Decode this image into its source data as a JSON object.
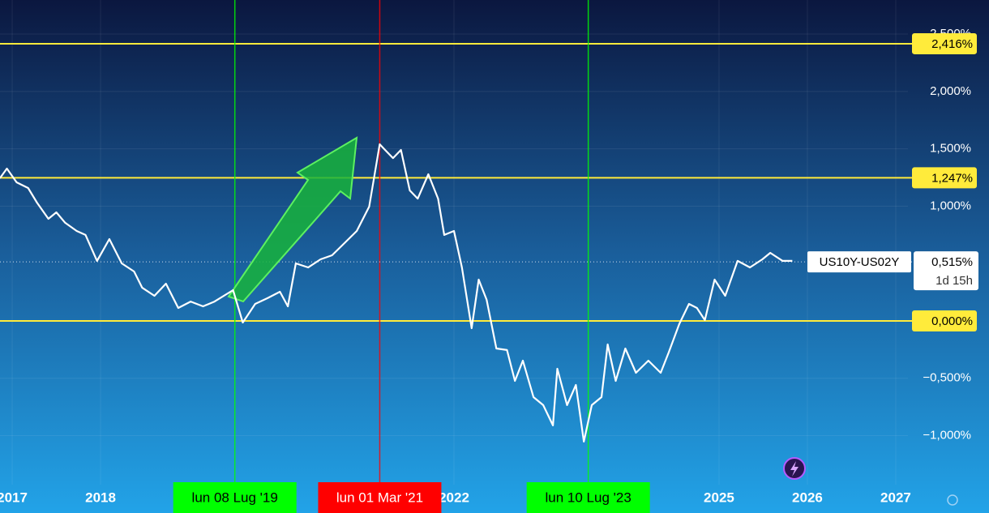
{
  "chart_data": {
    "type": "line",
    "x": [
      2016.86,
      2016.94,
      2017.05,
      2017.18,
      2017.28,
      2017.41,
      2017.5,
      2017.6,
      2017.73,
      2017.83,
      2017.96,
      2018.1,
      2018.24,
      2018.38,
      2018.47,
      2018.61,
      2018.74,
      2018.88,
      2019.02,
      2019.16,
      2019.29,
      2019.5,
      2019.61,
      2019.75,
      2019.89,
      2020.03,
      2020.12,
      2020.21,
      2020.35,
      2020.49,
      2020.62,
      2020.76,
      2020.9,
      2021.04,
      2021.16,
      2021.22,
      2021.31,
      2021.4,
      2021.5,
      2021.59,
      2021.71,
      2021.82,
      2021.89,
      2022.0,
      2022.09,
      2022.2,
      2022.28,
      2022.37,
      2022.48,
      2022.6,
      2022.69,
      2022.78,
      2022.9,
      2023.01,
      2023.12,
      2023.17,
      2023.28,
      2023.38,
      2023.47,
      2023.56,
      2023.67,
      2023.74,
      2023.83,
      2023.94,
      2024.06,
      2024.2,
      2024.34,
      2024.43,
      2024.55,
      2024.66,
      2024.75,
      2024.84,
      2024.95,
      2025.07,
      2025.21,
      2025.35,
      2025.49,
      2025.58,
      2025.72,
      2025.83
    ],
    "series": [
      {
        "name": "US10Y-US02Y",
        "color": "#ffffff",
        "values": [
          1.243,
          1.328,
          1.208,
          1.158,
          1.031,
          0.89,
          0.946,
          0.855,
          0.784,
          0.749,
          0.523,
          0.713,
          0.501,
          0.431,
          0.29,
          0.219,
          0.325,
          0.113,
          0.169,
          0.127,
          0.169,
          0.268,
          -0.014,
          0.148,
          0.198,
          0.254,
          0.127,
          0.501,
          0.466,
          0.537,
          0.572,
          0.678,
          0.784,
          0.996,
          1.54,
          1.49,
          1.419,
          1.49,
          1.137,
          1.066,
          1.278,
          1.066,
          0.749,
          0.784,
          0.466,
          -0.064,
          0.36,
          0.184,
          -0.24,
          -0.254,
          -0.523,
          -0.346,
          -0.664,
          -0.734,
          -0.911,
          -0.417,
          -0.734,
          -0.558,
          -1.052,
          -0.734,
          -0.664,
          -0.205,
          -0.523,
          -0.24,
          -0.452,
          -0.346,
          -0.452,
          -0.275,
          -0.028,
          0.148,
          0.113,
          0.007,
          0.36,
          0.219,
          0.523,
          0.466,
          0.537,
          0.593,
          0.523,
          0.523
        ]
      }
    ],
    "last_value": 0.515,
    "last_value_label": "0,515%",
    "countdown": "1d 15h",
    "xlim": [
      2016.862,
      2027.138
    ],
    "ylim": [
      -1.427,
      2.797
    ],
    "xticks": [
      2017,
      2018,
      2022,
      2025,
      2026,
      2027
    ],
    "yticks": [
      {
        "value": 2.5,
        "label": "2,500%"
      },
      {
        "value": 2.0,
        "label": "2,000%"
      },
      {
        "value": 1.5,
        "label": "1,500%"
      },
      {
        "value": 1.0,
        "label": "1,000%"
      },
      {
        "value": -0.5,
        "label": "−0,500%"
      },
      {
        "value": -1.0,
        "label": "−1,000%"
      }
    ],
    "grid": true,
    "hlines": [
      {
        "value": 2.416,
        "label": "2,416%",
        "color": "#ffeb3b"
      },
      {
        "value": 1.247,
        "label": "1,247%",
        "color": "#ffeb3b"
      },
      {
        "value": 0.0,
        "label": "0,000%",
        "color": "#ffeb3b"
      }
    ],
    "vlines": [
      {
        "value": 2019.52,
        "label": "lun 08 Lug '19",
        "color": "#00ff00"
      },
      {
        "value": 2021.16,
        "label": "lun 01 Mar '21",
        "color": "#ff0000"
      },
      {
        "value": 2023.52,
        "label": "lun 10 Lug '23",
        "color": "#00ff00"
      }
    ]
  }
}
